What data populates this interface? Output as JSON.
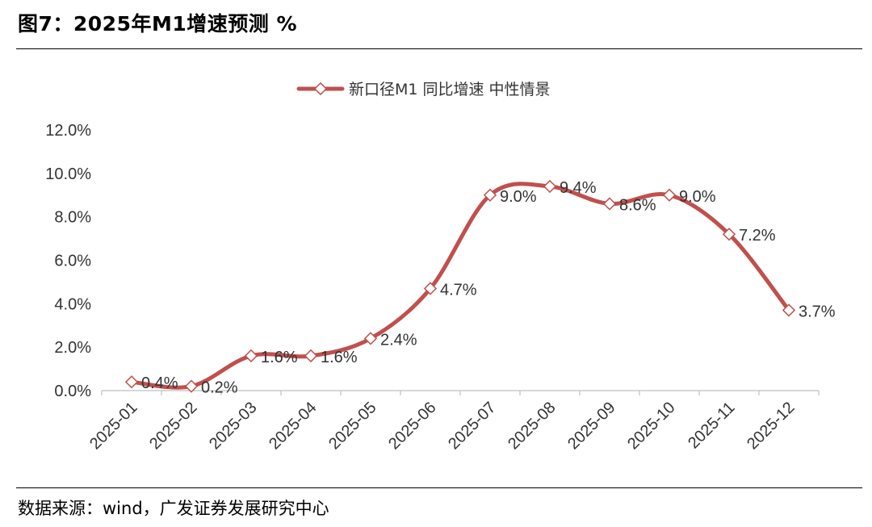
{
  "header": {
    "title": "图7：2025年M1增速预测 %"
  },
  "footer": {
    "source": "数据来源：wind，广发证券发展研究中心"
  },
  "chart_data": {
    "type": "line",
    "title": "",
    "xlabel": "",
    "ylabel": "",
    "categories": [
      "2025-01",
      "2025-02",
      "2025-03",
      "2025-04",
      "2025-05",
      "2025-06",
      "2025-07",
      "2025-08",
      "2025-09",
      "2025-10",
      "2025-11",
      "2025-12"
    ],
    "series": [
      {
        "name": "新口径M1 同比增速 中性情景",
        "values": [
          0.4,
          0.2,
          1.6,
          1.6,
          2.4,
          4.7,
          9.0,
          9.4,
          8.6,
          9.0,
          7.2,
          3.7
        ],
        "labels": [
          "0.4%",
          "0.2%",
          "1.6%",
          "1.6%",
          "2.4%",
          "4.7%",
          "9.0%",
          "9.4%",
          "8.6%",
          "9.0%",
          "7.2%",
          "3.7%"
        ],
        "color": "#C0504D",
        "marker": "diamond",
        "smooth": true
      }
    ],
    "ylim": [
      0,
      12
    ],
    "yticks": [
      "0.0%",
      "2.0%",
      "4.0%",
      "6.0%",
      "8.0%",
      "10.0%",
      "12.0%"
    ],
    "grid": false,
    "legend": "top-center"
  }
}
